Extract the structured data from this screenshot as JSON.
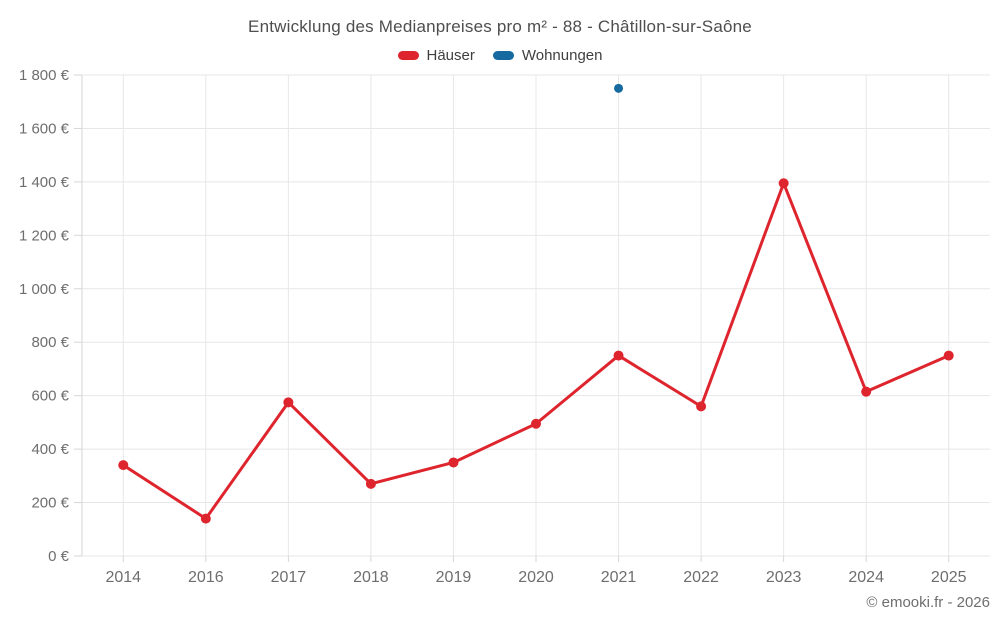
{
  "chart": {
    "title": "Entwicklung des Medianpreises pro m² - 88 - Châtillon-sur-Saône"
  },
  "footer": {
    "copyright": "© emooki.fr - 2026"
  },
  "chart_data": {
    "type": "line",
    "title": "Entwicklung des Medianpreises pro m² - 88 - Châtillon-sur-Saône",
    "xlabel": "",
    "ylabel": "",
    "categories": [
      "2014",
      "2016",
      "2017",
      "2018",
      "2019",
      "2020",
      "2021",
      "2022",
      "2023",
      "2024",
      "2025"
    ],
    "series": [
      {
        "name": "Häuser",
        "color": "#de252e",
        "points": [
          {
            "x": "2014",
            "y": 340
          },
          {
            "x": "2016",
            "y": 140
          },
          {
            "x": "2017",
            "y": 575
          },
          {
            "x": "2018",
            "y": 270
          },
          {
            "x": "2019",
            "y": 350
          },
          {
            "x": "2020",
            "y": 495
          },
          {
            "x": "2021",
            "y": 750
          },
          {
            "x": "2022",
            "y": 560
          },
          {
            "x": "2023",
            "y": 1395
          },
          {
            "x": "2024",
            "y": 615
          },
          {
            "x": "2025",
            "y": 750
          }
        ]
      },
      {
        "name": "Wohnungen",
        "color": "#166a9f",
        "points": [
          {
            "x": "2021",
            "y": 1750
          }
        ]
      }
    ],
    "ylim": [
      0,
      1800
    ],
    "y_tick_interval": 200,
    "y_tick_labels": [
      "0 €",
      "200 €",
      "400 €",
      "600 €",
      "800 €",
      "1 000 €",
      "1 200 €",
      "1 400 €",
      "1 600 €",
      "1 800 €"
    ],
    "grid": true,
    "legend_position": "top",
    "colors": {
      "grid_line": "#e7e7e7",
      "axis_line": "#d6d6d6",
      "tick_label": "#6e6e6e"
    }
  }
}
